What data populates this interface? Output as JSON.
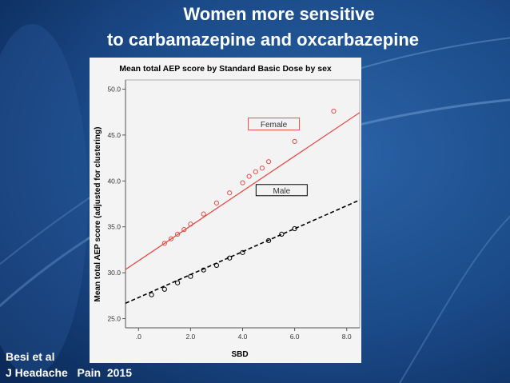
{
  "slide": {
    "title_line1": "Women more sensitive",
    "title_line2": "to carbamazepine and oxcarbazepine",
    "citation_line1": "Besi et al",
    "citation_line2": "J Headache   Pain  2015",
    "colors": {
      "background": "#1f4f8f",
      "text": "#ffffff"
    }
  },
  "chart_data": {
    "type": "scatter",
    "title": "Mean total AEP score by Standard Basic Dose by sex",
    "xlabel": "SBD",
    "ylabel": "Mean total AEP score (adjusted for clustering)",
    "xlim": [
      -0.5,
      8.5
    ],
    "ylim": [
      24,
      51
    ],
    "x_ticks": [
      0,
      2,
      4,
      6,
      8
    ],
    "x_tick_labels": [
      ".0",
      "2.0",
      "4.0",
      "6.0",
      "8.0"
    ],
    "y_ticks": [
      25,
      30,
      35,
      40,
      45,
      50
    ],
    "y_tick_labels": [
      "25.0",
      "30.0",
      "35.0",
      "40.0",
      "45.0",
      "50.0"
    ],
    "series": [
      {
        "name": "Female",
        "label": "Female",
        "color": "#e0504a",
        "line": "solid",
        "fit": {
          "intercept": 31.3,
          "slope": 1.9
        },
        "points": [
          [
            1.0,
            33.2
          ],
          [
            1.25,
            33.7
          ],
          [
            1.5,
            34.2
          ],
          [
            1.75,
            34.7
          ],
          [
            2.0,
            35.3
          ],
          [
            2.5,
            36.4
          ],
          [
            3.0,
            37.6
          ],
          [
            3.5,
            38.7
          ],
          [
            4.0,
            39.8
          ],
          [
            4.25,
            40.5
          ],
          [
            4.5,
            41.0
          ],
          [
            4.75,
            41.4
          ],
          [
            5.0,
            42.1
          ],
          [
            6.0,
            44.3
          ],
          [
            7.5,
            47.6
          ]
        ]
      },
      {
        "name": "Male",
        "label": "Male",
        "color": "#000000",
        "line": "dashed",
        "fit": {
          "intercept": 27.3,
          "slope": 1.25
        },
        "points": [
          [
            0.5,
            27.6
          ],
          [
            1.0,
            28.2
          ],
          [
            1.5,
            28.9
          ],
          [
            2.0,
            29.6
          ],
          [
            2.5,
            30.3
          ],
          [
            3.0,
            30.8
          ],
          [
            3.5,
            31.6
          ],
          [
            4.0,
            32.2
          ],
          [
            5.0,
            33.5
          ],
          [
            5.5,
            34.2
          ],
          [
            6.0,
            34.8
          ]
        ]
      }
    ]
  }
}
